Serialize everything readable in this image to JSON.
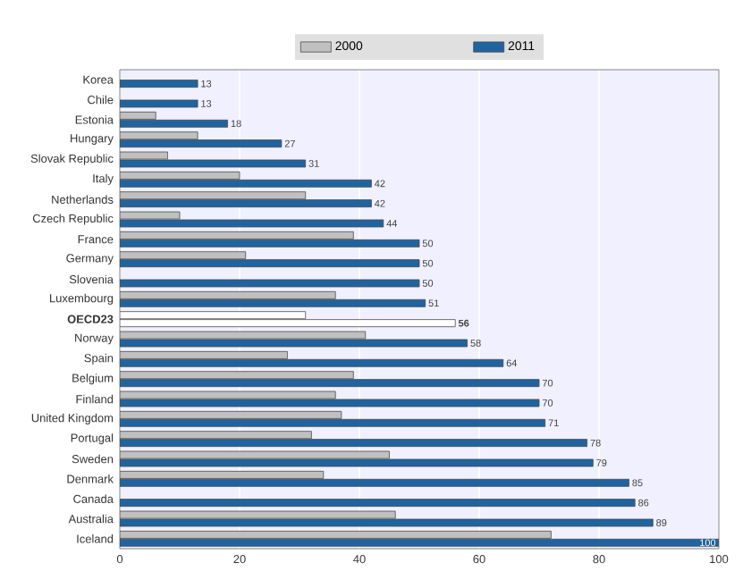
{
  "chart_data": {
    "type": "bar",
    "orientation": "horizontal",
    "categories": [
      "Korea",
      "Chile",
      "Estonia",
      "Hungary",
      "Slovak Republic",
      "Italy",
      "Netherlands",
      "Czech Republic",
      "France",
      "Germany",
      "Slovenia",
      "Luxembourg",
      "OECD23",
      "Norway",
      "Spain",
      "Belgium",
      "Finland",
      "United Kingdom",
      "Portugal",
      "Sweden",
      "Denmark",
      "Canada",
      "Australia",
      "Iceland"
    ],
    "series": [
      {
        "name": "2000",
        "color": "#c0c0c0",
        "colors": [
          "#c0c0c0",
          "#c0c0c0",
          "#c0c0c0",
          "#c0c0c0",
          "#c0c0c0",
          "#c0c0c0",
          "#c0c0c0",
          "#c0c0c0",
          "#c0c0c0",
          "#c0c0c0",
          "#c0c0c0",
          "#c0c0c0",
          "#ffffff",
          "#c0c0c0",
          "#c0c0c0",
          "#c0c0c0",
          "#c0c0c0",
          "#c0c0c0",
          "#c0c0c0",
          "#c0c0c0",
          "#c0c0c0",
          "#c0c0c0",
          "#c0c0c0",
          "#c0c0c0"
        ],
        "values": [
          null,
          null,
          6,
          13,
          8,
          20,
          31,
          10,
          39,
          21,
          null,
          36,
          31,
          41,
          28,
          39,
          36,
          37,
          32,
          45,
          34,
          null,
          46,
          72
        ]
      },
      {
        "name": "2011",
        "color": "#1f64a0",
        "colors": [
          "#1f64a0",
          "#1f64a0",
          "#1f64a0",
          "#1f64a0",
          "#1f64a0",
          "#1f64a0",
          "#1f64a0",
          "#1f64a0",
          "#1f64a0",
          "#1f64a0",
          "#1f64a0",
          "#1f64a0",
          "#ffffff",
          "#1f64a0",
          "#1f64a0",
          "#1f64a0",
          "#1f64a0",
          "#1f64a0",
          "#1f64a0",
          "#1f64a0",
          "#1f64a0",
          "#1f64a0",
          "#1f64a0",
          "#1f64a0"
        ],
        "values": [
          13,
          13,
          18,
          27,
          31,
          42,
          42,
          44,
          50,
          50,
          50,
          51,
          56,
          58,
          64,
          70,
          70,
          71,
          78,
          79,
          85,
          86,
          89,
          100
        ],
        "value_labels": [
          "13",
          "13",
          "18",
          "27",
          "31",
          "42",
          "42",
          "44",
          "50",
          "50",
          "50",
          "51",
          "56",
          "58",
          "64",
          "70",
          "70",
          "71",
          "78",
          "79",
          "85",
          "86",
          "89",
          "100"
        ]
      }
    ],
    "xlim": [
      0,
      100
    ],
    "xticks": [
      0,
      20,
      40,
      60,
      80,
      100
    ],
    "grid": "x",
    "legend": "top"
  }
}
